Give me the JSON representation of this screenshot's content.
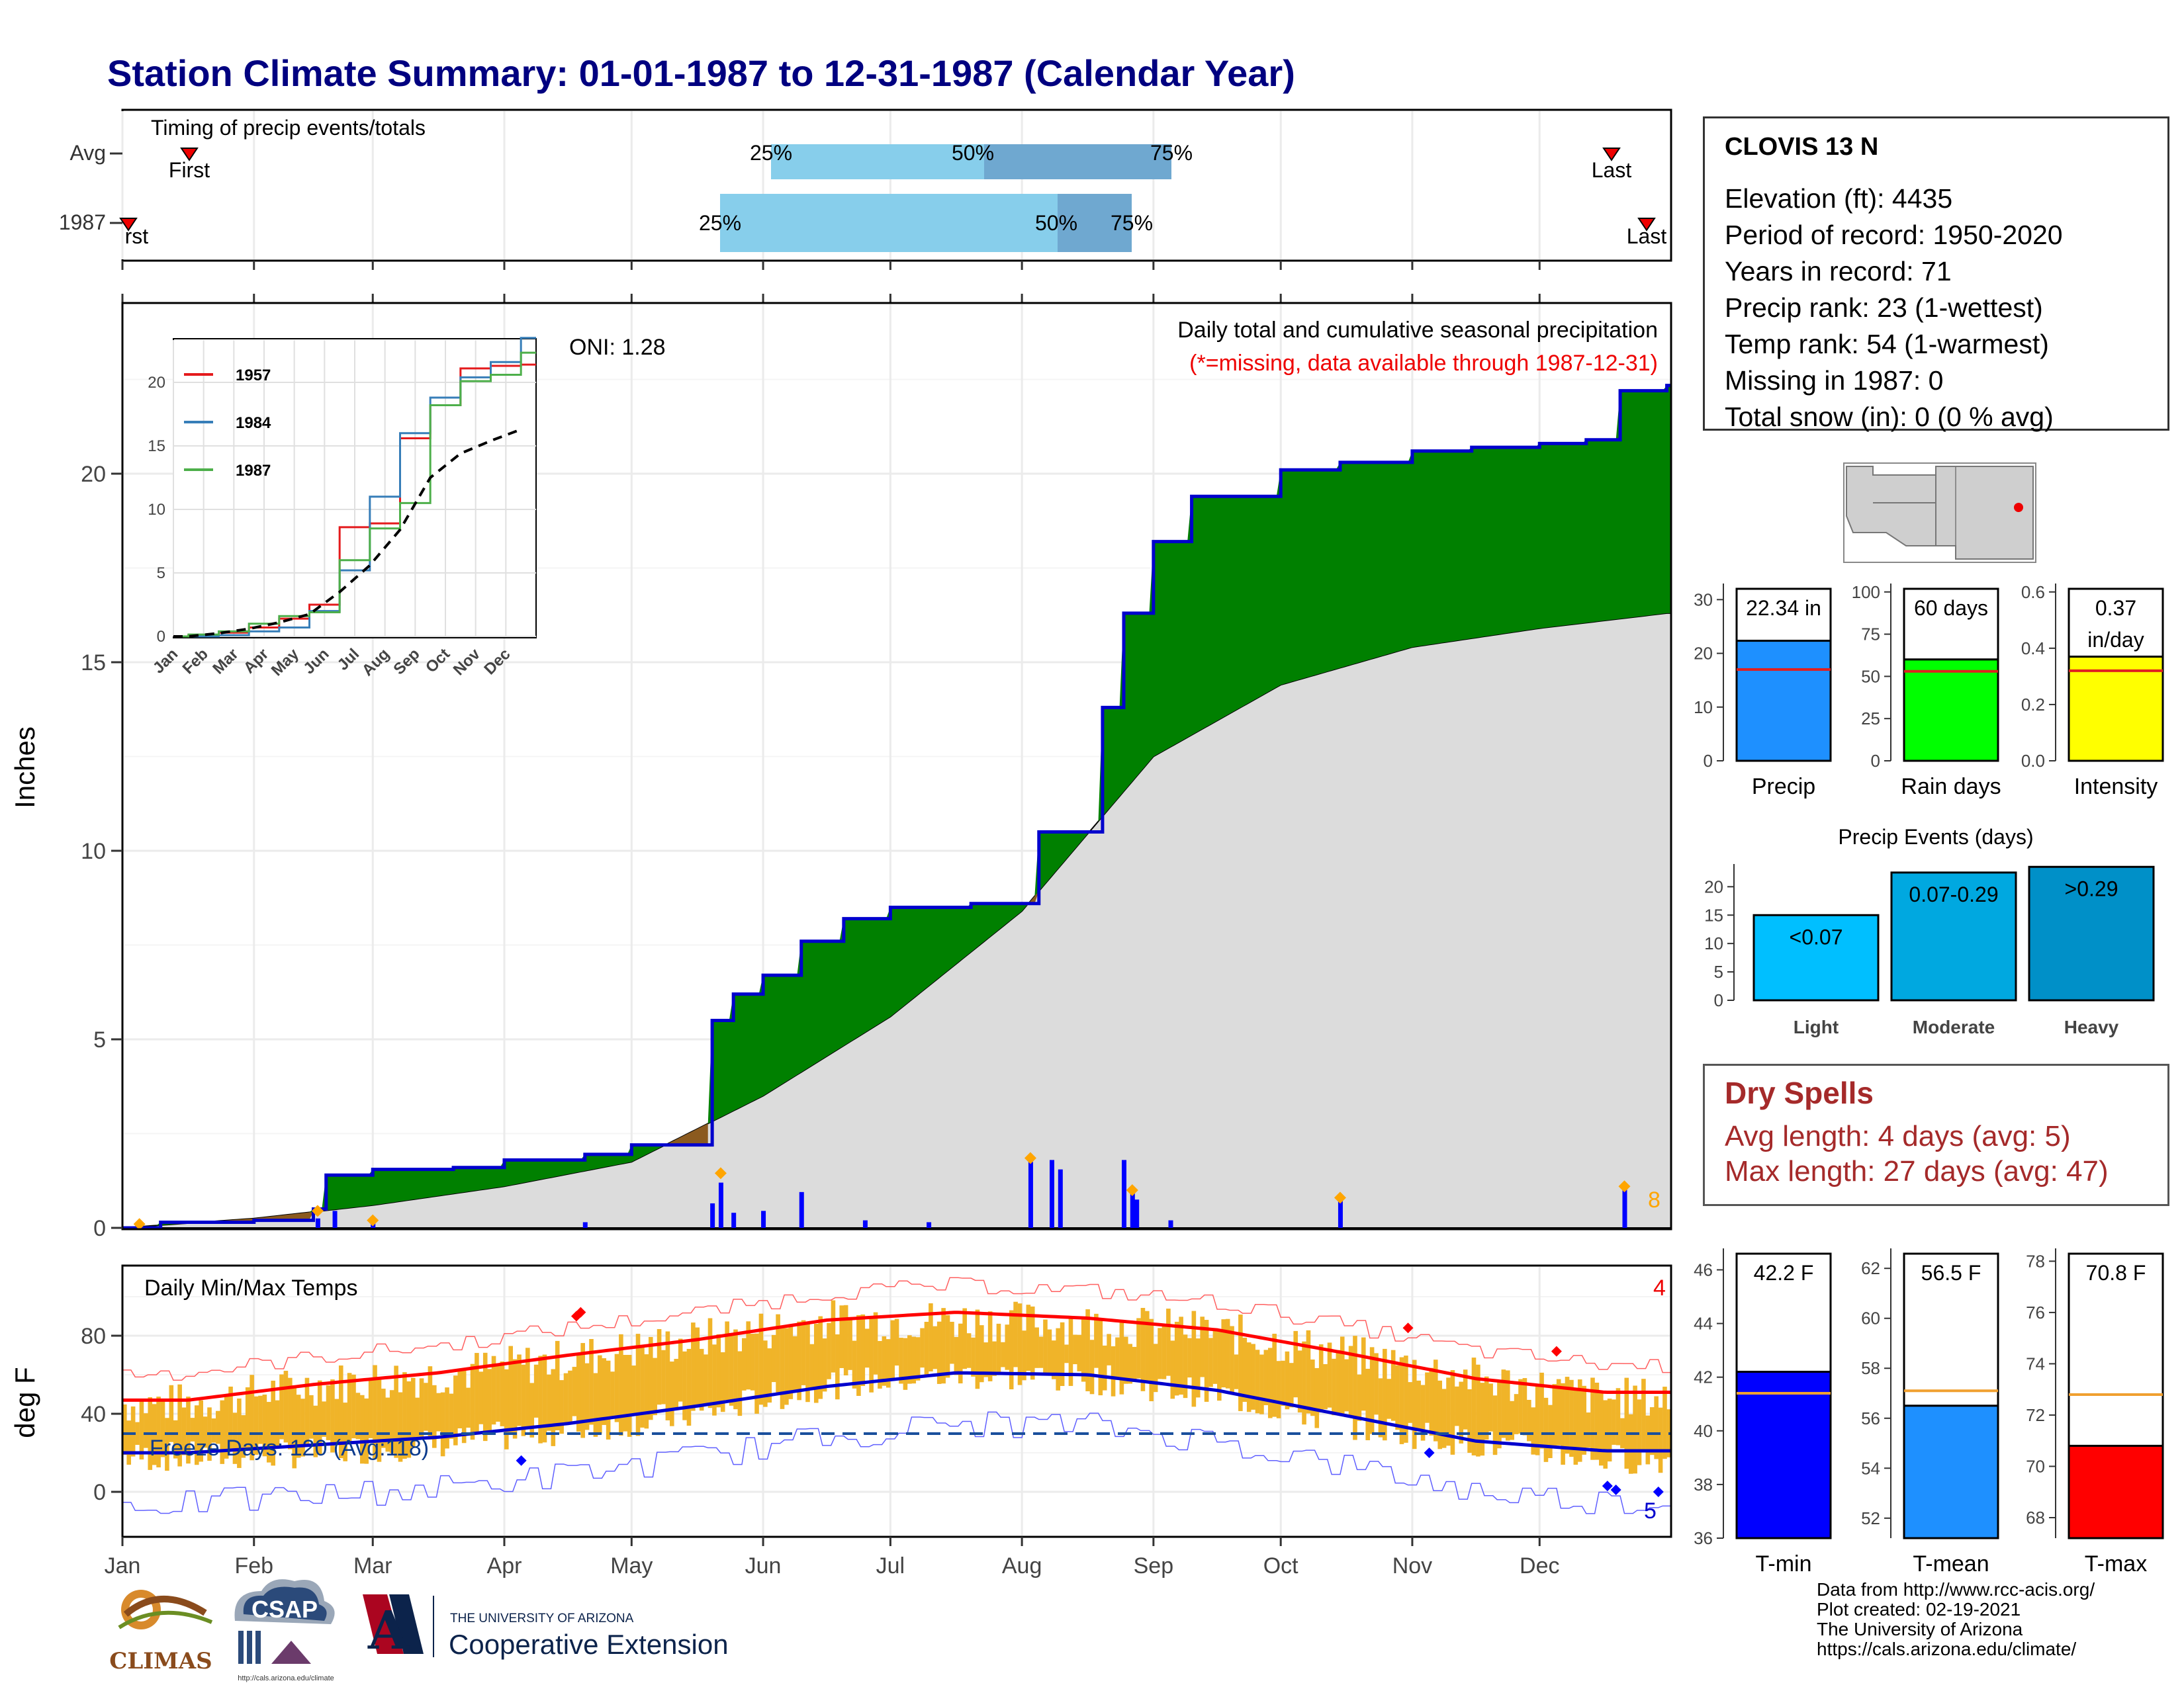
{
  "title": "Station Climate Summary: 01-01-1987 to 12-31-1987 (Calendar Year)",
  "colors": {
    "title": "#000080",
    "green_fill": "#008000",
    "avg_fill": "#dcdcdc",
    "brown_fill": "#8b5a1f",
    "precip_line": "#0000cd",
    "bar_blue": "#0000ff",
    "event_marker": "#ffa500",
    "temp_bar": "#f0b429",
    "tmax_line": "#ff0000",
    "tmin_line": "#0000cd"
  },
  "station": {
    "name": "CLOVIS 13 N",
    "lines": [
      "Elevation (ft): 4435",
      "Period of record: 1950-2020",
      "Years in record: 71",
      "Precip rank: 23 (1-wettest)",
      "Temp rank: 54 (1-warmest)",
      "Missing in 1987: 0",
      "Total snow (in): 0 (0 % avg)"
    ]
  },
  "timing": {
    "title": "Timing of precip events/totals",
    "rows": [
      "Avg",
      "1987"
    ],
    "avg": {
      "first_label": "First",
      "last_label": "Last",
      "q25": "25%",
      "q50": "50%",
      "q75": "75%"
    },
    "y1987": {
      "first_label": "First",
      "last_label": "Last",
      "q25": "25%",
      "q50": "50%",
      "q75": "75%"
    }
  },
  "months": [
    "Jan",
    "Feb",
    "Mar",
    "Apr",
    "May",
    "Jun",
    "Jul",
    "Aug",
    "Sep",
    "Oct",
    "Nov",
    "Dec"
  ],
  "precip_panel": {
    "ylabel": "Inches",
    "yticks": [
      "0",
      "5",
      "10",
      "15",
      "20"
    ],
    "oni": "ONI: 1.28",
    "note1": "Daily total and cumulative seasonal precipitation",
    "note2": "(*=missing, data available through 1987-12-31)",
    "event_count": "8"
  },
  "inset": {
    "yticks": [
      "0",
      "5",
      "10",
      "15",
      "20"
    ],
    "xticks": [
      "Jan",
      "Feb",
      "Mar",
      "Apr",
      "May",
      "Jun",
      "Jul",
      "Aug",
      "Sep",
      "Oct",
      "Nov",
      "Dec"
    ],
    "legend": [
      {
        "name": "1957",
        "color": "#e41a1c"
      },
      {
        "name": "1984",
        "color": "#377eb8"
      },
      {
        "name": "1987",
        "color": "#4daf4a"
      }
    ]
  },
  "temp_panel": {
    "title": "Daily Min/Max Temps",
    "ylabel": "deg F",
    "yticks": [
      "0",
      "40",
      "80"
    ],
    "freeze_text": "Freeze Days: 120 (Avg:118)",
    "count_top": "4",
    "count_bottom": "5"
  },
  "bars": {
    "precip": {
      "label": "Precip",
      "value_label": "22.34 in",
      "yticks": [
        "0",
        "10",
        "20",
        "30"
      ]
    },
    "raindays": {
      "label": "Rain days",
      "value_label": "60 days",
      "yticks": [
        "0",
        "25",
        "50",
        "75",
        "100"
      ]
    },
    "intensity": {
      "label": "Intensity",
      "value_label1": "0.37",
      "value_label2": "in/day",
      "yticks": [
        "0.0",
        "0.2",
        "0.4",
        "0.6"
      ]
    },
    "events_title": "Precip Events (days)",
    "events_yticks": [
      "0",
      "5",
      "10",
      "15",
      "20"
    ],
    "events": [
      {
        "label": "Light",
        "value_label": "<0.07"
      },
      {
        "label": "Moderate",
        "value_label": "0.07-0.29"
      },
      {
        "label": "Heavy",
        "value_label": ">0.29"
      }
    ],
    "tmin": {
      "label": "T-min",
      "value_label": "42.2 F",
      "yticks": [
        "36",
        "38",
        "40",
        "42",
        "44",
        "46"
      ]
    },
    "tmean": {
      "label": "T-mean",
      "value_label": "56.5 F",
      "yticks": [
        "52",
        "54",
        "56",
        "58",
        "60",
        "62"
      ]
    },
    "tmax": {
      "label": "T-max",
      "value_label": "70.8 F",
      "yticks": [
        "68",
        "70",
        "72",
        "74",
        "76",
        "78"
      ]
    }
  },
  "dry_spells": {
    "title": "Dry Spells",
    "avg": "Avg length: 4 days (avg: 5)",
    "max": "Max length: 27 days (avg: 47)"
  },
  "credits": [
    "Data from http://www.rcc-acis.org/",
    "Plot created: 02-19-2021",
    "The University of Arizona",
    "https://cals.arizona.edu/climate/"
  ],
  "logos": {
    "climas": "CLIMAS",
    "csap": "CSAP",
    "csap_url": "http://cals.arizona.edu/climate",
    "ua_small": "THE UNIVERSITY OF ARIZONA",
    "ua_big": "Cooperative Extension"
  },
  "chart_data": [
    {
      "type": "area",
      "title": "Daily total and cumulative seasonal precipitation",
      "ylabel": "Inches",
      "ylim": [
        0,
        25
      ],
      "series": [
        {
          "name": "1987",
          "x": [
            "01-01",
            "01-10",
            "02-01",
            "02-15",
            "02-18",
            "03-01",
            "03-20",
            "04-01",
            "04-20",
            "05-01",
            "05-20",
            "05-25",
            "06-01",
            "06-10",
            "06-20",
            "07-01",
            "07-20",
            "08-02",
            "08-05",
            "08-20",
            "08-25",
            "09-01",
            "09-10",
            "10-01",
            "10-15",
            "11-01",
            "11-15",
            "12-01",
            "12-12",
            "12-20",
            "12-31"
          ],
          "values": [
            0.0,
            0.15,
            0.2,
            0.5,
            1.4,
            1.55,
            1.6,
            1.8,
            1.95,
            2.2,
            5.5,
            6.2,
            6.7,
            7.6,
            8.2,
            8.5,
            8.6,
            8.6,
            10.5,
            13.8,
            16.3,
            18.2,
            19.4,
            20.1,
            20.3,
            20.6,
            20.7,
            20.8,
            20.9,
            22.2,
            22.34
          ]
        },
        {
          "name": "avg",
          "x": [
            "01-01",
            "02-01",
            "03-01",
            "04-01",
            "05-01",
            "06-01",
            "07-01",
            "08-01",
            "09-01",
            "10-01",
            "11-01",
            "12-01",
            "12-31"
          ],
          "values": [
            0.0,
            0.25,
            0.6,
            1.1,
            1.75,
            3.5,
            5.6,
            8.4,
            12.5,
            14.4,
            15.4,
            15.9,
            16.3
          ]
        }
      ],
      "daily_precip": {
        "x": [
          "01-05",
          "02-16",
          "02-20",
          "03-01",
          "04-20",
          "05-20",
          "05-22",
          "05-25",
          "06-01",
          "06-10",
          "06-25",
          "07-10",
          "08-03",
          "08-08",
          "08-10",
          "08-25",
          "08-27",
          "08-28",
          "09-05",
          "10-15",
          "12-21"
        ],
        "values": [
          0.05,
          0.25,
          0.45,
          0.15,
          0.15,
          0.65,
          1.2,
          0.4,
          0.45,
          0.95,
          0.2,
          0.15,
          1.75,
          1.8,
          1.55,
          1.8,
          0.95,
          0.75,
          0.2,
          0.75,
          1.05
        ]
      }
    },
    {
      "type": "line",
      "title": "",
      "xlabel": "",
      "ylabel": "",
      "ylim": [
        0,
        24
      ],
      "categories": [
        "Jan",
        "Feb",
        "Mar",
        "Apr",
        "May",
        "Jun",
        "Jul",
        "Aug",
        "Sep",
        "Oct",
        "Nov",
        "Dec"
      ],
      "series": [
        {
          "name": "1957",
          "values": [
            0.1,
            0.3,
            0.7,
            1.4,
            2.5,
            8.6,
            8.9,
            15.6,
            18.2,
            21.1,
            21.3,
            21.4
          ]
        },
        {
          "name": "1984",
          "values": [
            0.0,
            0.1,
            0.4,
            0.7,
            2.0,
            5.2,
            11.0,
            16.0,
            18.8,
            20.4,
            21.6,
            23.5
          ]
        },
        {
          "name": "1987",
          "values": [
            0.15,
            0.4,
            1.0,
            1.6,
            1.9,
            6.0,
            8.5,
            10.5,
            18.2,
            20.1,
            20.6,
            22.34
          ]
        },
        {
          "name": "avg",
          "values": [
            0.0,
            0.25,
            0.6,
            1.1,
            1.75,
            3.5,
            5.6,
            8.4,
            12.5,
            14.4,
            15.4,
            16.3
          ]
        }
      ]
    },
    {
      "type": "bar",
      "title": "Daily Min/Max Temps",
      "ylabel": "deg F",
      "ylim": [
        -25,
        115
      ],
      "categories": [
        "Jan",
        "Feb",
        "Mar",
        "Apr",
        "May",
        "Jun",
        "Jul",
        "Aug",
        "Sep",
        "Oct",
        "Nov",
        "Dec"
      ],
      "series": [
        {
          "name": "tmax_daily",
          "values": [
            45,
            55,
            60,
            68,
            78,
            88,
            88,
            86,
            82,
            70,
            58,
            48
          ]
        },
        {
          "name": "tmin_daily",
          "values": [
            18,
            20,
            25,
            32,
            40,
            55,
            60,
            58,
            50,
            35,
            25,
            17
          ]
        },
        {
          "name": "tmax_avg",
          "values": [
            47,
            55,
            61,
            70,
            78,
            88,
            92,
            89,
            83,
            71,
            58,
            51
          ]
        },
        {
          "name": "tmin_avg",
          "values": [
            20,
            24,
            28,
            35,
            44,
            54,
            61,
            60,
            52,
            39,
            26,
            21
          ]
        }
      ],
      "freeze_line": 32
    },
    {
      "type": "bar",
      "categories": [
        "Precip",
        "Rain days",
        "Intensity",
        "T-min",
        "T-mean",
        "T-max"
      ],
      "values": [
        22.34,
        60,
        0.37,
        42.2,
        56.5,
        70.8
      ],
      "averages": [
        17,
        53,
        0.32,
        41.4,
        57.1,
        72.8
      ]
    },
    {
      "type": "bar",
      "title": "Precip Events (days)",
      "categories": [
        "Light",
        "Moderate",
        "Heavy"
      ],
      "values": [
        15,
        22.5,
        23.5
      ],
      "ylim": [
        0,
        24
      ]
    }
  ]
}
